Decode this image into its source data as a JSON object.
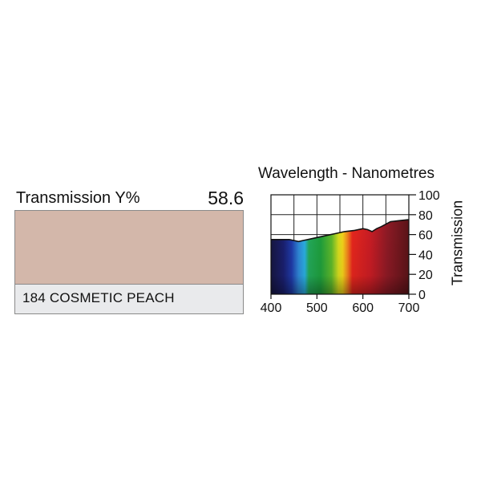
{
  "filter": {
    "transmission_label": "Transmission Y%",
    "transmission_value": "58.6",
    "swatch_color": "#d3b7aa",
    "name": "184 COSMETIC PEACH"
  },
  "chart_data": {
    "type": "area",
    "title": "Wavelength - Nanometres",
    "xlabel": "",
    "ylabel": "Transmission",
    "xlim": [
      400,
      700
    ],
    "ylim": [
      0,
      100
    ],
    "x_ticks": [
      400,
      500,
      600,
      700
    ],
    "y_ticks": [
      0,
      20,
      40,
      60,
      80,
      100
    ],
    "grid": true,
    "fill": "visible spectrum gradient",
    "series": [
      {
        "x": [
          400,
          420,
          440,
          450,
          460,
          470,
          480,
          500,
          520,
          540,
          560,
          580,
          600,
          610,
          620,
          630,
          640,
          660,
          680,
          700
        ],
        "values": [
          55,
          55,
          55,
          54,
          53,
          54,
          55,
          57,
          59,
          61,
          63,
          64,
          66,
          65,
          63,
          66,
          68,
          73,
          74,
          75
        ]
      }
    ]
  }
}
